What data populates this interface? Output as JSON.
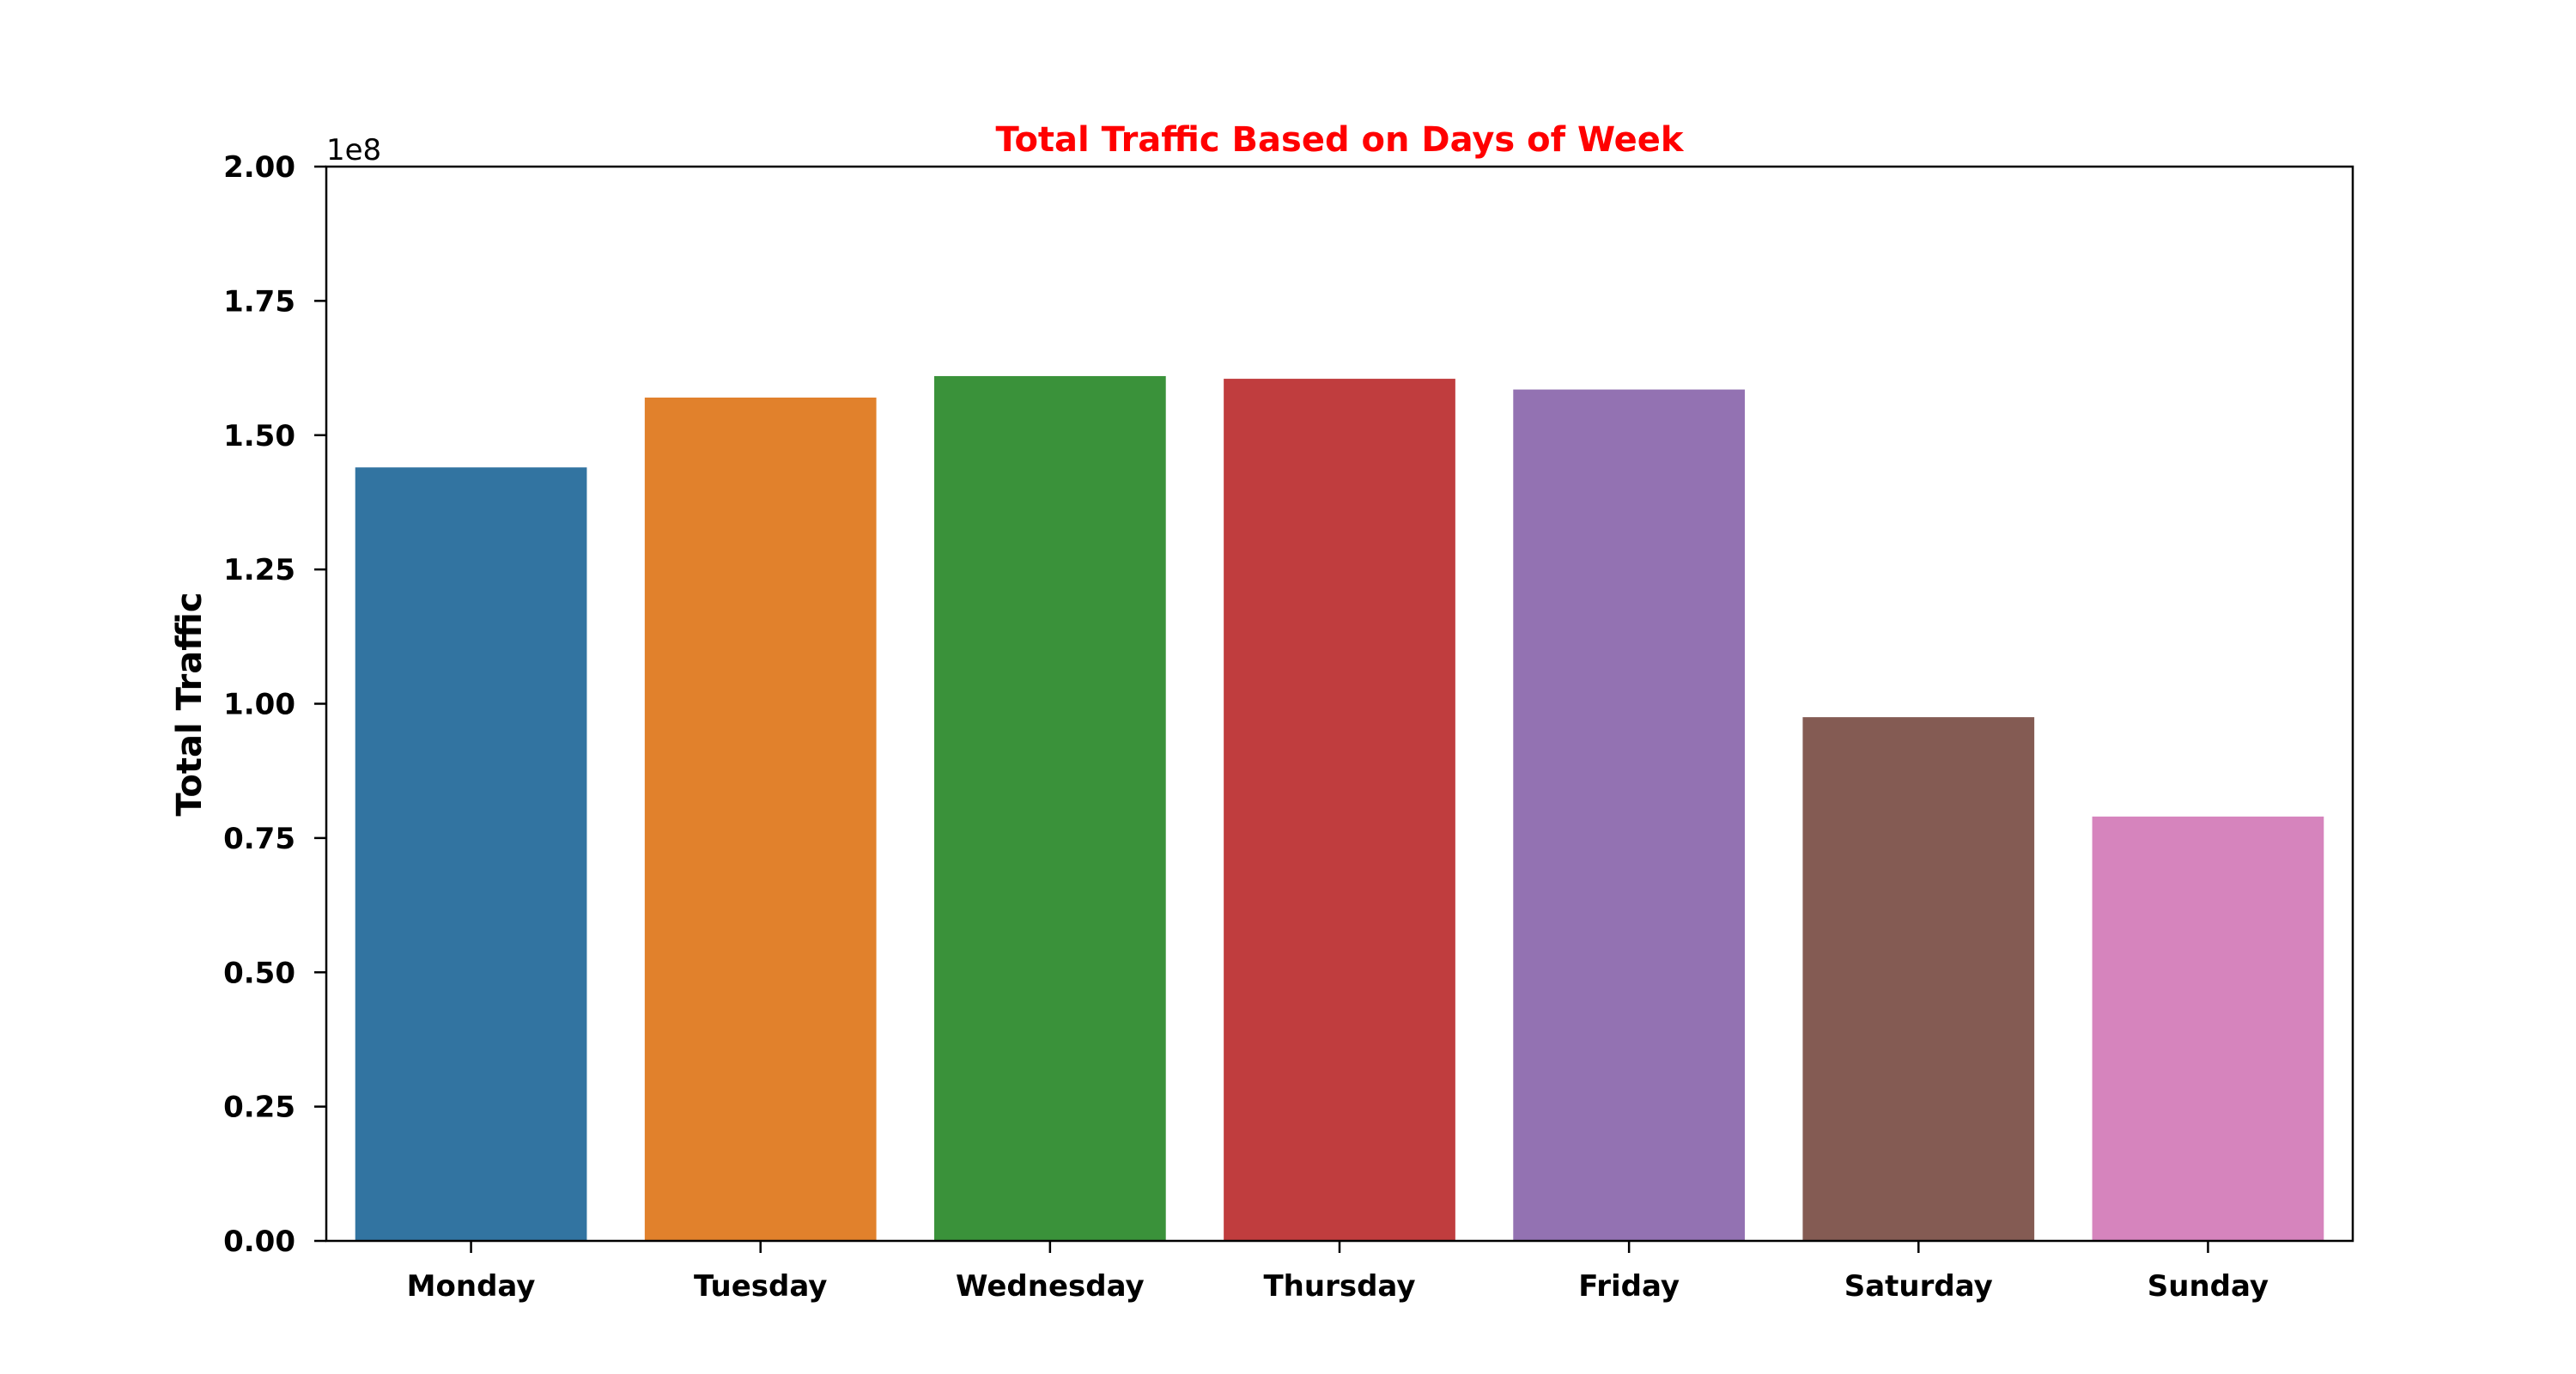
{
  "chart_data": {
    "type": "bar",
    "title": "Total Traffic Based on Days of Week",
    "title_color": "#ff0000",
    "xlabel": "",
    "ylabel": "Total Traffic",
    "y_offset_label": "1e8",
    "ylim": [
      0,
      200000000
    ],
    "yticks": [
      0,
      25000000,
      50000000,
      75000000,
      100000000,
      125000000,
      150000000,
      175000000,
      200000000
    ],
    "ytick_labels": [
      "0.00",
      "0.25",
      "0.50",
      "0.75",
      "1.00",
      "1.25",
      "1.50",
      "1.75",
      "2.00"
    ],
    "categories": [
      "Monday",
      "Tuesday",
      "Wednesday",
      "Thursday",
      "Friday",
      "Saturday",
      "Sunday"
    ],
    "values": [
      144000000,
      157000000,
      161000000,
      160500000,
      158500000,
      97500000,
      79000000
    ],
    "colors": [
      "#3274a1",
      "#e1812c",
      "#3a923a",
      "#c03d3e",
      "#9372b2",
      "#845b53",
      "#d684bd"
    ],
    "grid": false,
    "legend": "none"
  }
}
